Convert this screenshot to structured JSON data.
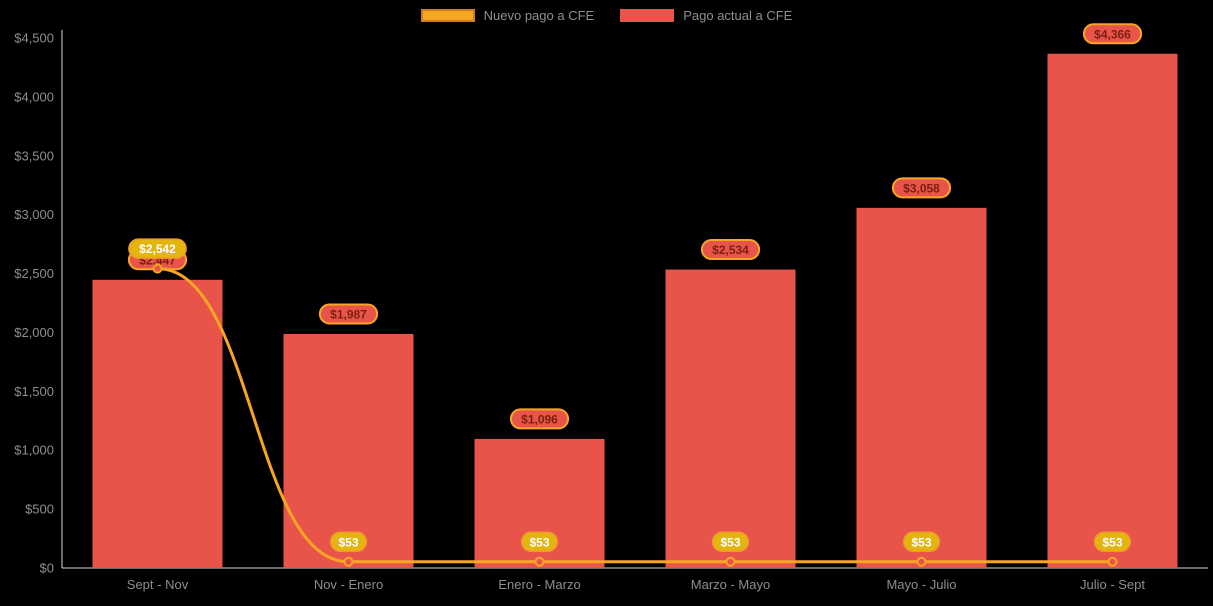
{
  "colors": {
    "background": "#000000",
    "bar": "#e8544a",
    "line": "#f5a623",
    "gold_pill": "#e4b50f",
    "gold_pill_border": "#ef9a2d",
    "gold_pill_text": "#ffffff",
    "bar_pill_fill": "#e8544a",
    "bar_pill_border": "#f5a623",
    "bar_pill_text": "#7a1f12",
    "axis_line": "#d9d9d9",
    "tick_text": "#8e8e8e"
  },
  "legend": {
    "items": [
      {
        "label": "Nuevo pago a CFE",
        "color": "#f5a623",
        "series_type": "line"
      },
      {
        "label": "Pago actual a CFE",
        "color": "#e8544a",
        "series_type": "bar"
      }
    ]
  },
  "chart_data": {
    "type": "bar",
    "subtype": "bar+line combo",
    "categories": [
      "Sept - Nov",
      "Nov - Enero",
      "Enero - Marzo",
      "Marzo - Mayo",
      "Mayo - Julio",
      "Julio - Sept"
    ],
    "series": [
      {
        "name": "Nuevo pago a CFE",
        "type": "line",
        "color": "#f5a623",
        "values": [
          2542,
          53,
          53,
          53,
          53,
          53
        ],
        "labels": [
          "$2,542",
          "$53",
          "$53",
          "$53",
          "$53",
          "$53"
        ]
      },
      {
        "name": "Pago actual a CFE",
        "type": "bar",
        "color": "#e8544a",
        "values": [
          2447,
          1987,
          1096,
          2534,
          3058,
          4366
        ],
        "labels": [
          "$2,447",
          "$1,987",
          "$1,096",
          "$2,534",
          "$3,058",
          "$4,366"
        ]
      }
    ],
    "title": "",
    "xlabel": "",
    "ylabel": "",
    "ylim": [
      0,
      4500
    ],
    "y_ticks": [
      0,
      500,
      1000,
      1500,
      2000,
      2500,
      3000,
      3500,
      4000,
      4500
    ],
    "y_tick_labels": [
      "$0",
      "$500",
      "$1,000",
      "$1,500",
      "$2,000",
      "$2,500",
      "$3,000",
      "$3,500",
      "$4,000",
      "$4,500"
    ],
    "grid": false,
    "legend_position": "top-center"
  }
}
